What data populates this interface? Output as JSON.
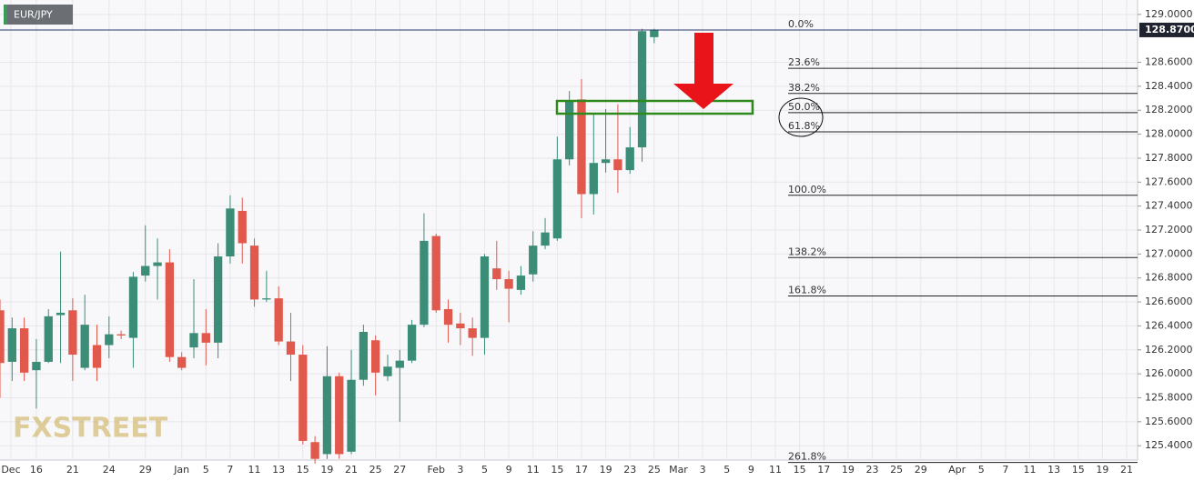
{
  "chart_data": {
    "type": "candlestick",
    "symbol": "EUR/JPY",
    "watermark": "FXSTREET",
    "up_color": "#3b8d78",
    "down_color": "#e0594c",
    "grid": true,
    "x": [
      0,
      1,
      2,
      3,
      4,
      5,
      6,
      7,
      8,
      9,
      10,
      11,
      12,
      13,
      14,
      15,
      16,
      17,
      18,
      19,
      20,
      21,
      22,
      23,
      24,
      25,
      26,
      27,
      28,
      29,
      30,
      31,
      32,
      33,
      34,
      35,
      36,
      37,
      38,
      39,
      40,
      41,
      42,
      43,
      44,
      45,
      46,
      47,
      48,
      49,
      50,
      51,
      52,
      53,
      54
    ],
    "open": [
      126.53,
      126.1,
      126.38,
      126.03,
      126.1,
      126.49,
      126.53,
      126.05,
      126.24,
      126.24,
      126.33,
      126.3,
      126.82,
      126.9,
      126.93,
      126.14,
      126.22,
      126.34,
      126.26,
      126.98,
      127.36,
      127.07,
      126.62,
      126.63,
      126.27,
      126.16,
      125.43,
      125.33,
      125.98,
      125.35,
      125.95,
      126.28,
      125.98,
      126.05,
      126.11,
      126.41,
      127.15,
      126.54,
      126.42,
      126.38,
      126.3,
      126.88,
      126.79,
      126.7,
      126.83,
      127.07,
      127.13,
      127.79,
      128.29,
      127.5,
      127.76,
      127.79,
      127.7,
      127.89,
      128.81
    ],
    "high": [
      126.62,
      126.47,
      126.47,
      126.29,
      126.54,
      127.02,
      126.63,
      126.66,
      126.41,
      126.48,
      126.36,
      126.85,
      127.24,
      127.13,
      127.04,
      126.18,
      126.79,
      126.54,
      127.09,
      127.49,
      127.47,
      127.13,
      126.86,
      126.73,
      126.51,
      126.24,
      125.48,
      126.23,
      126.01,
      126.2,
      126.41,
      126.32,
      126.16,
      126.2,
      126.45,
      127.34,
      127.17,
      126.62,
      126.51,
      126.47,
      127.0,
      127.11,
      126.86,
      126.9,
      127.19,
      127.3,
      127.98,
      128.36,
      128.46,
      128.17,
      128.21,
      128.25,
      128.06,
      128.88,
      128.88
    ],
    "low": [
      125.8,
      125.94,
      125.94,
      125.71,
      126.09,
      126.09,
      125.94,
      126.03,
      125.94,
      126.13,
      126.29,
      126.05,
      126.77,
      126.62,
      126.1,
      126.03,
      126.13,
      126.07,
      126.13,
      126.92,
      126.92,
      126.56,
      126.6,
      126.24,
      125.94,
      125.41,
      125.25,
      125.29,
      125.29,
      125.33,
      125.9,
      125.82,
      125.94,
      125.6,
      126.09,
      126.39,
      126.51,
      126.26,
      126.24,
      126.15,
      126.16,
      126.7,
      126.43,
      126.66,
      126.77,
      127.04,
      127.11,
      127.74,
      127.3,
      127.33,
      127.68,
      127.51,
      127.67,
      127.77,
      128.76
    ],
    "close": [
      126.09,
      126.38,
      126.01,
      126.1,
      126.48,
      126.51,
      126.16,
      126.41,
      126.05,
      126.33,
      126.32,
      126.81,
      126.9,
      126.93,
      126.14,
      126.05,
      126.34,
      126.26,
      126.98,
      127.38,
      127.09,
      126.62,
      126.63,
      126.27,
      126.16,
      125.44,
      125.29,
      125.98,
      125.33,
      125.95,
      126.35,
      126.01,
      126.06,
      126.11,
      126.41,
      127.11,
      126.53,
      126.41,
      126.38,
      126.3,
      126.98,
      126.79,
      126.71,
      126.82,
      127.07,
      127.18,
      127.79,
      128.27,
      127.5,
      127.76,
      127.79,
      127.7,
      127.89,
      128.86,
      128.87
    ],
    "xlim": [
      0,
      93.9
    ],
    "xticks": [
      {
        "value": 0.9,
        "label": "Dec"
      },
      {
        "value": 3,
        "label": "16"
      },
      {
        "value": 6,
        "label": "21"
      },
      {
        "value": 9,
        "label": "24"
      },
      {
        "value": 12,
        "label": "29"
      },
      {
        "value": 15,
        "label": "Jan"
      },
      {
        "value": 17,
        "label": "5"
      },
      {
        "value": 19,
        "label": "7"
      },
      {
        "value": 21,
        "label": "11"
      },
      {
        "value": 23,
        "label": "13"
      },
      {
        "value": 25,
        "label": "15"
      },
      {
        "value": 27,
        "label": "19"
      },
      {
        "value": 29,
        "label": "21"
      },
      {
        "value": 31,
        "label": "25"
      },
      {
        "value": 33,
        "label": "27"
      },
      {
        "value": 36,
        "label": "Feb"
      },
      {
        "value": 38,
        "label": "3"
      },
      {
        "value": 40,
        "label": "5"
      },
      {
        "value": 42,
        "label": "9"
      },
      {
        "value": 44,
        "label": "11"
      },
      {
        "value": 46,
        "label": "15"
      },
      {
        "value": 48,
        "label": "17"
      },
      {
        "value": 50,
        "label": "19"
      },
      {
        "value": 52,
        "label": "23"
      },
      {
        "value": 54,
        "label": "25"
      },
      {
        "value": 56,
        "label": "Mar"
      },
      {
        "value": 58,
        "label": "3"
      },
      {
        "value": 60,
        "label": "5"
      },
      {
        "value": 62,
        "label": "9"
      },
      {
        "value": 64,
        "label": "11"
      },
      {
        "value": 66,
        "label": "15"
      },
      {
        "value": 68,
        "label": "17"
      },
      {
        "value": 70,
        "label": "19"
      },
      {
        "value": 72,
        "label": "23"
      },
      {
        "value": 74,
        "label": "25"
      },
      {
        "value": 76,
        "label": "29"
      },
      {
        "value": 79,
        "label": "Apr"
      },
      {
        "value": 81,
        "label": "5"
      },
      {
        "value": 83,
        "label": "7"
      },
      {
        "value": 85,
        "label": "11"
      },
      {
        "value": 87,
        "label": "13"
      },
      {
        "value": 89,
        "label": "15"
      },
      {
        "value": 91,
        "label": "19"
      },
      {
        "value": 93,
        "label": "21"
      }
    ],
    "ylim": [
      125.28,
      129.12
    ],
    "yticks": [
      {
        "value": 129.0,
        "label": "129.0000"
      },
      {
        "value": 128.6,
        "label": "128.6000"
      },
      {
        "value": 128.4,
        "label": "128.4000"
      },
      {
        "value": 128.2,
        "label": "128.2000"
      },
      {
        "value": 128.0,
        "label": "128.0000"
      },
      {
        "value": 127.8,
        "label": "127.8000"
      },
      {
        "value": 127.6,
        "label": "127.6000"
      },
      {
        "value": 127.4,
        "label": "127.4000"
      },
      {
        "value": 127.2,
        "label": "127.2000"
      },
      {
        "value": 127.0,
        "label": "127.0000"
      },
      {
        "value": 126.8,
        "label": "126.8000"
      },
      {
        "value": 126.6,
        "label": "126.6000"
      },
      {
        "value": 126.4,
        "label": "126.4000"
      },
      {
        "value": 126.2,
        "label": "126.2000"
      },
      {
        "value": 126.0,
        "label": "126.0000"
      },
      {
        "value": 125.8,
        "label": "125.8000"
      },
      {
        "value": 125.6,
        "label": "125.6000"
      },
      {
        "value": 125.4,
        "label": "125.4000"
      }
    ],
    "last_price": {
      "value": 128.87,
      "label": "128.8700"
    },
    "fib_levels": [
      {
        "label": "0.0%",
        "value": 128.87
      },
      {
        "label": "23.6%",
        "value": 128.55
      },
      {
        "label": "38.2%",
        "value": 128.34
      },
      {
        "label": "50.0%",
        "value": 128.18
      },
      {
        "label": "61.8%",
        "value": 128.02
      },
      {
        "label": "100.0%",
        "value": 127.49
      },
      {
        "label": "138.2%",
        "value": 126.97
      },
      {
        "label": "161.8%",
        "value": 126.65
      },
      {
        "label": "261.8%",
        "value": 125.26
      }
    ]
  }
}
